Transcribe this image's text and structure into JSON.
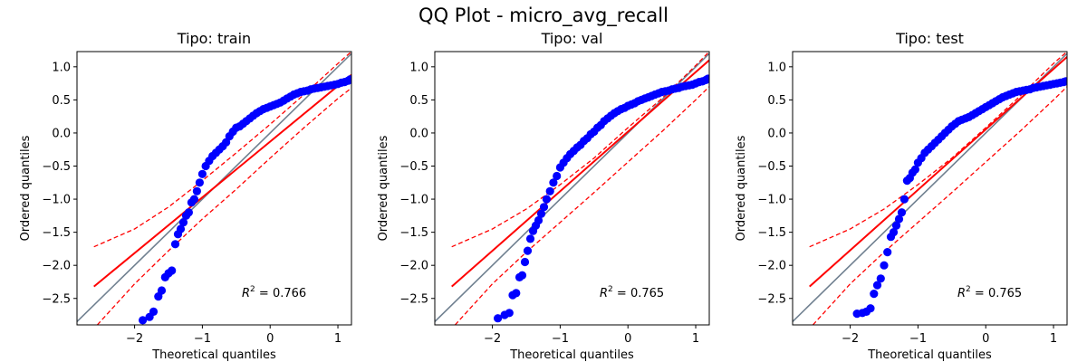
{
  "chart_data": {
    "type": "scatter",
    "suptitle": "QQ Plot - micro_avg_recall",
    "xlim": [
      -2.85,
      1.2
    ],
    "ylim": [
      -2.9,
      1.23
    ],
    "xticks": [
      -2,
      -1,
      0,
      1
    ],
    "xtick_labels": [
      "−2",
      "−1",
      "0",
      "1"
    ],
    "yticks": [
      -2.5,
      -2.0,
      -1.5,
      -1.0,
      -0.5,
      0.0,
      0.5,
      1.0
    ],
    "ytick_labels": [
      "−2.5",
      "−2.0",
      "−1.5",
      "−1.0",
      "−0.5",
      "0.0",
      "0.5",
      "1.0"
    ],
    "xlabel": "Theoretical quantiles",
    "ylabel": "Ordered quantiles",
    "colors": {
      "points": "#0000ff",
      "fit": "#ff0000",
      "band": "#ff0000",
      "reference": "#708090"
    },
    "panels": [
      {
        "title": "Tipo: train",
        "r2_prefix": "R",
        "r2_exp": "2",
        "r2_value": " = 0.766",
        "fit_line": {
          "x": [
            -2.6,
            1.2
          ],
          "y": [
            -2.32,
            0.88
          ]
        },
        "band_upper": {
          "x": [
            -2.6,
            -2.0,
            -1.5,
            -1.0,
            -0.5,
            0.0,
            0.5,
            1.0,
            1.2
          ],
          "y": [
            -1.72,
            -1.45,
            -1.12,
            -0.72,
            -0.3,
            0.13,
            0.58,
            1.05,
            1.23
          ]
        },
        "band_lower": {
          "x": [
            -2.55,
            -2.0,
            -1.5,
            -1.0,
            -0.5,
            0.0,
            0.5,
            1.0,
            1.2
          ],
          "y": [
            -2.9,
            -2.28,
            -1.78,
            -1.3,
            -0.85,
            -0.38,
            0.08,
            0.52,
            0.68
          ]
        },
        "points": {
          "x": [
            -1.88,
            -1.78,
            -1.72,
            -1.65,
            -1.6,
            -1.55,
            -1.5,
            -1.45,
            -1.4,
            -1.36,
            -1.32,
            -1.28,
            -1.24,
            -1.2,
            -1.16,
            -1.12,
            -1.08,
            -1.04,
            -1.0,
            -0.95,
            -0.9,
            -0.85,
            -0.8,
            -0.75,
            -0.7,
            -0.65,
            -0.6,
            -0.55,
            -0.5,
            -0.45,
            -0.4,
            -0.35,
            -0.3,
            -0.25,
            -0.2,
            -0.15,
            -0.1,
            -0.05,
            0.0,
            0.05,
            0.1,
            0.15,
            0.2,
            0.25,
            0.3,
            0.35,
            0.4,
            0.45,
            0.5,
            0.55,
            0.6,
            0.65,
            0.7,
            0.75,
            0.8,
            0.85,
            0.9,
            0.95,
            1.0,
            1.05,
            1.1,
            1.15,
            1.18
          ],
          "y": [
            -2.83,
            -2.78,
            -2.7,
            -2.47,
            -2.38,
            -2.18,
            -2.12,
            -2.08,
            -1.68,
            -1.53,
            -1.45,
            -1.35,
            -1.25,
            -1.2,
            -1.05,
            -1.0,
            -0.88,
            -0.75,
            -0.62,
            -0.5,
            -0.42,
            -0.35,
            -0.3,
            -0.25,
            -0.2,
            -0.14,
            -0.05,
            0.02,
            0.08,
            0.1,
            0.14,
            0.18,
            0.22,
            0.26,
            0.3,
            0.33,
            0.36,
            0.38,
            0.4,
            0.42,
            0.44,
            0.46,
            0.49,
            0.52,
            0.55,
            0.58,
            0.6,
            0.62,
            0.63,
            0.64,
            0.66,
            0.67,
            0.68,
            0.69,
            0.7,
            0.71,
            0.72,
            0.73,
            0.74,
            0.76,
            0.77,
            0.79,
            0.81
          ]
        }
      },
      {
        "title": "Tipo: val",
        "r2_prefix": "R",
        "r2_exp": "2",
        "r2_value": " = 0.765",
        "fit_line": {
          "x": [
            -2.6,
            1.2
          ],
          "y": [
            -2.32,
            1.1
          ]
        },
        "band_upper": {
          "x": [
            -2.6,
            -2.0,
            -1.5,
            -1.0,
            -0.5,
            0.0,
            0.5,
            1.0,
            1.2
          ],
          "y": [
            -1.72,
            -1.45,
            -1.15,
            -0.78,
            -0.38,
            0.08,
            0.52,
            1.02,
            1.23
          ]
        },
        "band_lower": {
          "x": [
            -2.55,
            -2.0,
            -1.5,
            -1.0,
            -0.5,
            0.0,
            0.5,
            1.0,
            1.2
          ],
          "y": [
            -2.9,
            -2.28,
            -1.8,
            -1.35,
            -0.9,
            -0.44,
            0.02,
            0.5,
            0.7
          ]
        },
        "points": {
          "x": [
            -1.92,
            -1.82,
            -1.75,
            -1.7,
            -1.65,
            -1.6,
            -1.56,
            -1.52,
            -1.48,
            -1.44,
            -1.4,
            -1.36,
            -1.32,
            -1.28,
            -1.24,
            -1.2,
            -1.15,
            -1.1,
            -1.05,
            -1.0,
            -0.95,
            -0.9,
            -0.85,
            -0.8,
            -0.75,
            -0.7,
            -0.65,
            -0.6,
            -0.55,
            -0.5,
            -0.45,
            -0.4,
            -0.35,
            -0.3,
            -0.25,
            -0.2,
            -0.15,
            -0.1,
            -0.05,
            0.0,
            0.05,
            0.1,
            0.15,
            0.2,
            0.25,
            0.3,
            0.35,
            0.4,
            0.45,
            0.5,
            0.55,
            0.6,
            0.65,
            0.7,
            0.75,
            0.8,
            0.85,
            0.9,
            0.95,
            1.0,
            1.05,
            1.1,
            1.15,
            1.18
          ],
          "y": [
            -2.8,
            -2.75,
            -2.72,
            -2.45,
            -2.42,
            -2.18,
            -2.15,
            -1.95,
            -1.78,
            -1.6,
            -1.48,
            -1.4,
            -1.32,
            -1.22,
            -1.12,
            -1.0,
            -0.88,
            -0.75,
            -0.65,
            -0.52,
            -0.45,
            -0.38,
            -0.32,
            -0.27,
            -0.22,
            -0.18,
            -0.12,
            -0.08,
            -0.02,
            0.02,
            0.08,
            0.12,
            0.18,
            0.22,
            0.26,
            0.3,
            0.33,
            0.36,
            0.38,
            0.41,
            0.43,
            0.45,
            0.48,
            0.5,
            0.52,
            0.54,
            0.56,
            0.58,
            0.6,
            0.62,
            0.63,
            0.64,
            0.66,
            0.67,
            0.68,
            0.7,
            0.71,
            0.72,
            0.73,
            0.75,
            0.77,
            0.78,
            0.8,
            0.82
          ]
        }
      },
      {
        "title": "Tipo: test",
        "r2_prefix": "R",
        "r2_exp": "2",
        "r2_value": " = 0.765",
        "fit_line": {
          "x": [
            -2.6,
            1.2
          ],
          "y": [
            -2.32,
            1.15
          ]
        },
        "band_upper": {
          "x": [
            -2.6,
            -2.0,
            -1.5,
            -1.0,
            -0.5,
            0.0,
            0.5,
            1.0,
            1.2
          ],
          "y": [
            -1.72,
            -1.45,
            -1.15,
            -0.78,
            -0.38,
            0.08,
            0.55,
            1.05,
            1.23
          ]
        },
        "band_lower": {
          "x": [
            -2.55,
            -2.0,
            -1.5,
            -1.0,
            -0.5,
            0.0,
            0.5,
            1.0,
            1.2
          ],
          "y": [
            -2.9,
            -2.28,
            -1.8,
            -1.35,
            -0.9,
            -0.44,
            0.02,
            0.5,
            0.7
          ]
        },
        "points": {
          "x": [
            -1.9,
            -1.82,
            -1.76,
            -1.7,
            -1.65,
            -1.6,
            -1.55,
            -1.5,
            -1.45,
            -1.4,
            -1.36,
            -1.32,
            -1.28,
            -1.24,
            -1.2,
            -1.16,
            -1.12,
            -1.08,
            -1.04,
            -1.0,
            -0.95,
            -0.9,
            -0.85,
            -0.8,
            -0.75,
            -0.7,
            -0.65,
            -0.6,
            -0.55,
            -0.5,
            -0.45,
            -0.4,
            -0.35,
            -0.3,
            -0.25,
            -0.2,
            -0.15,
            -0.1,
            -0.05,
            0.0,
            0.05,
            0.1,
            0.15,
            0.2,
            0.25,
            0.3,
            0.35,
            0.4,
            0.45,
            0.5,
            0.55,
            0.6,
            0.65,
            0.7,
            0.75,
            0.8,
            0.85,
            0.9,
            0.95,
            1.0,
            1.05,
            1.1,
            1.15,
            1.18
          ],
          "y": [
            -2.73,
            -2.72,
            -2.7,
            -2.65,
            -2.43,
            -2.3,
            -2.2,
            -2.0,
            -1.8,
            -1.57,
            -1.5,
            -1.4,
            -1.3,
            -1.2,
            -1.0,
            -0.72,
            -0.68,
            -0.6,
            -0.55,
            -0.45,
            -0.38,
            -0.3,
            -0.25,
            -0.2,
            -0.15,
            -0.1,
            -0.05,
            0.0,
            0.05,
            0.1,
            0.14,
            0.18,
            0.2,
            0.22,
            0.24,
            0.27,
            0.3,
            0.33,
            0.36,
            0.39,
            0.42,
            0.45,
            0.48,
            0.51,
            0.54,
            0.56,
            0.58,
            0.6,
            0.62,
            0.63,
            0.64,
            0.65,
            0.66,
            0.68,
            0.69,
            0.7,
            0.71,
            0.72,
            0.73,
            0.74,
            0.75,
            0.76,
            0.77,
            0.78
          ]
        }
      }
    ]
  }
}
